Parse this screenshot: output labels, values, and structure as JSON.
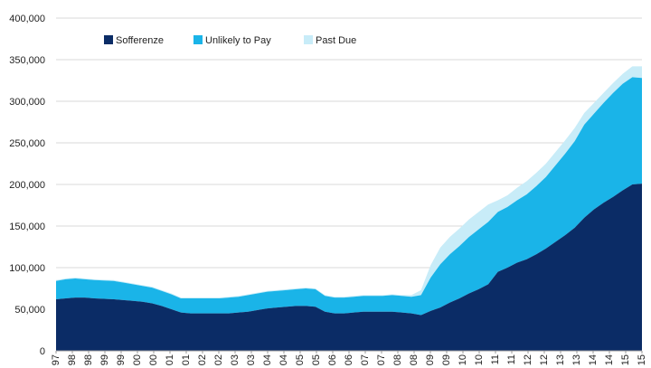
{
  "chart_data": {
    "type": "area",
    "stacked": true,
    "title": "",
    "xlabel": "",
    "ylabel": "",
    "ylim": [
      0,
      400000
    ],
    "yticks": [
      "0",
      "50,000",
      "100,000",
      "150,000",
      "200,000",
      "250,000",
      "300,000",
      "350,000",
      "400,000"
    ],
    "grid": "horizontal",
    "legend_position": "top-left",
    "xtick_labels": [
      "97",
      "98",
      "98",
      "99",
      "99",
      "00",
      "00",
      "01",
      "01",
      "02",
      "02",
      "03",
      "03",
      "04",
      "04",
      "05",
      "05",
      "06",
      "06",
      "07",
      "07",
      "08",
      "08",
      "09",
      "09",
      "10",
      "10",
      "11",
      "11",
      "12",
      "12",
      "13",
      "13",
      "14",
      "14",
      "15",
      "15"
    ],
    "x_tick_positions": [
      0,
      2,
      4,
      6,
      8,
      10,
      12,
      14,
      16,
      18,
      20,
      22,
      24,
      26,
      28,
      30,
      32,
      34,
      36,
      38,
      40,
      42,
      44,
      46,
      48,
      50,
      52,
      54,
      56,
      58,
      60,
      62,
      64,
      66,
      68,
      70,
      72
    ],
    "series": [
      {
        "name": "Sofferenze",
        "color": "#0b2c66",
        "values": [
          62000,
          63000,
          64000,
          64000,
          63000,
          62500,
          62000,
          61000,
          60000,
          59000,
          57000,
          54000,
          50000,
          46000,
          45000,
          45000,
          45000,
          45000,
          45000,
          46000,
          47000,
          49000,
          51000,
          52000,
          53000,
          54000,
          54000,
          53000,
          47000,
          45000,
          45000,
          46000,
          47000,
          47000,
          47000,
          47000,
          46000,
          45000,
          43000,
          48000,
          52000,
          58000,
          63000,
          69000,
          74000,
          80000,
          95000,
          100000,
          106000,
          110000,
          116000,
          123000,
          131000,
          139000,
          148000,
          160000,
          170000,
          178000,
          185000,
          193000,
          200000,
          201000
        ]
      },
      {
        "name": "Unlikely to Pay",
        "color": "#1ab4e8",
        "values": [
          22000,
          23000,
          23000,
          22000,
          22000,
          22000,
          22000,
          21000,
          20000,
          19000,
          19000,
          18000,
          18000,
          17000,
          18000,
          18000,
          18000,
          18000,
          19000,
          19000,
          20000,
          20000,
          20000,
          20000,
          20000,
          20000,
          21000,
          21000,
          19000,
          19000,
          19000,
          19000,
          19000,
          19000,
          19000,
          20000,
          20000,
          20000,
          24000,
          40000,
          52000,
          58000,
          63000,
          68000,
          72000,
          75000,
          72000,
          73000,
          75000,
          78000,
          82000,
          86000,
          92000,
          98000,
          104000,
          112000,
          115000,
          120000,
          125000,
          128000,
          129000,
          127000
        ]
      },
      {
        "name": "Past Due",
        "color": "#c8ecf8",
        "values": [
          1000,
          1000,
          1000,
          1000,
          1000,
          1000,
          1000,
          1000,
          1000,
          1000,
          1000,
          1000,
          1000,
          1000,
          1000,
          1000,
          1000,
          1000,
          1000,
          1000,
          1000,
          1000,
          1000,
          1000,
          1000,
          1000,
          1000,
          1000,
          1000,
          1000,
          1000,
          1000,
          1000,
          1000,
          1000,
          1000,
          1000,
          2000,
          6000,
          15000,
          20000,
          21000,
          21000,
          21000,
          21000,
          21000,
          14000,
          14000,
          15000,
          16000,
          16000,
          16000,
          16000,
          16000,
          16000,
          14000,
          13000,
          12000,
          12000,
          12000,
          13000,
          14000
        ]
      }
    ]
  }
}
